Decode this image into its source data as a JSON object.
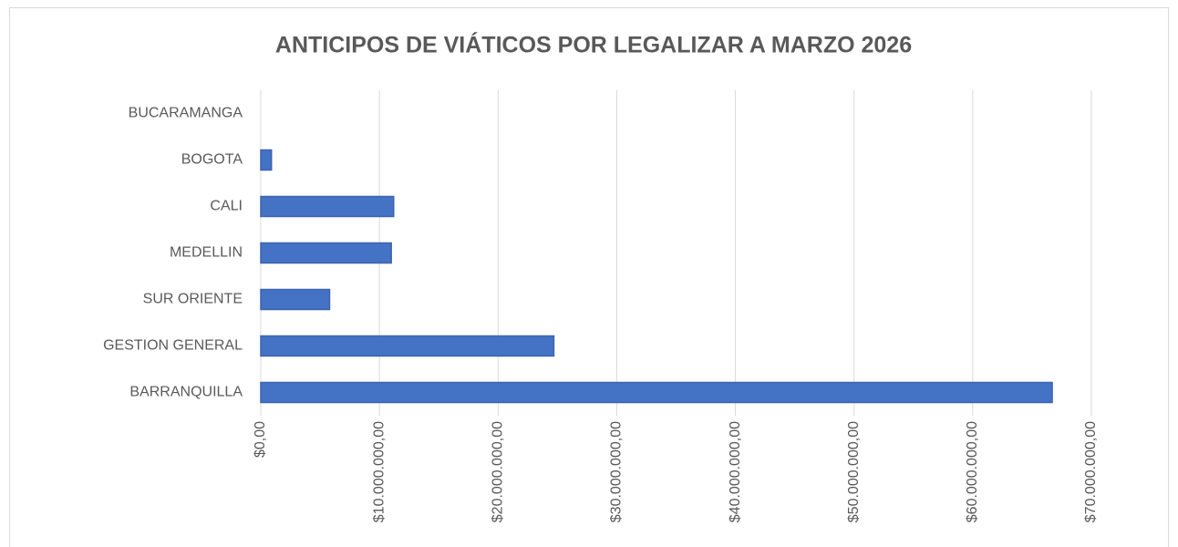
{
  "chart_data": {
    "type": "bar",
    "orientation": "horizontal",
    "title": "ANTICIPOS DE VIÁTICOS POR LEGALIZAR A MARZO 2026",
    "categories": [
      "BUCARAMANGA",
      "BOGOTA",
      "CALI",
      "MEDELLIN",
      "SUR ORIENTE",
      "GESTION GENERAL",
      "BARRANQUILLA"
    ],
    "values": [
      0,
      900000,
      11200000,
      11000000,
      5800000,
      24700000,
      66700000
    ],
    "color": "#4472c4",
    "xlim": [
      0,
      70000000
    ],
    "xticks": [
      {
        "value": 0,
        "label": "$0,00"
      },
      {
        "value": 10000000,
        "label": "$10.000.000,00"
      },
      {
        "value": 20000000,
        "label": "$20.000.000,00"
      },
      {
        "value": 30000000,
        "label": "$30.000.000,00"
      },
      {
        "value": 40000000,
        "label": "$40.000.000,00"
      },
      {
        "value": 50000000,
        "label": "$50.000.000,00"
      },
      {
        "value": 60000000,
        "label": "$60.000.000,00"
      },
      {
        "value": 70000000,
        "label": "$70.000.000,00"
      }
    ],
    "grid": true
  }
}
